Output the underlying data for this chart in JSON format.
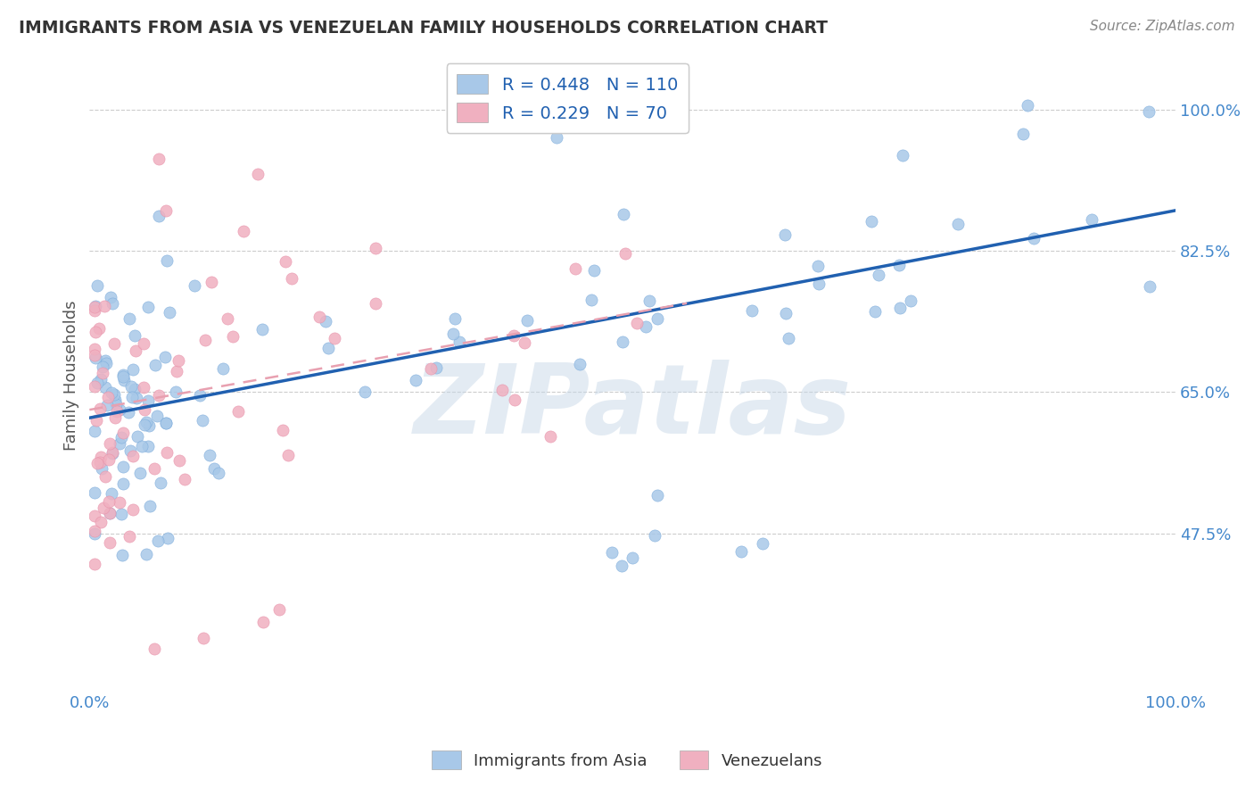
{
  "title": "IMMIGRANTS FROM ASIA VS VENEZUELAN FAMILY HOUSEHOLDS CORRELATION CHART",
  "source_text": "Source: ZipAtlas.com",
  "ylabel": "Family Households",
  "watermark": "ZIPatlas",
  "legend_labels": [
    "Immigrants from Asia",
    "Venezuelans"
  ],
  "legend_r": [
    0.448,
    0.229
  ],
  "legend_n": [
    110,
    70
  ],
  "blue_color": "#a8c8e8",
  "pink_color": "#f0b0c0",
  "blue_edge": "#7aabdb",
  "pink_edge": "#e890a8",
  "trend_blue": "#2060b0",
  "trend_pink": "#e8a0b0",
  "axis_label_color": "#4488cc",
  "title_color": "#333333",
  "source_color": "#888888",
  "legend_text_color": "#2060b0",
  "legend_rn_color": "#2060b0",
  "ytick_labels": [
    "47.5%",
    "65.0%",
    "82.5%",
    "100.0%"
  ],
  "ytick_values": [
    0.475,
    0.65,
    0.825,
    1.0
  ],
  "xtick_labels": [
    "0.0%",
    "100.0%"
  ],
  "xlim": [
    0.0,
    1.0
  ],
  "ylim": [
    0.28,
    1.06
  ],
  "blue_trend_x0": 0.0,
  "blue_trend_y0": 0.618,
  "blue_trend_x1": 1.0,
  "blue_trend_y1": 0.875,
  "pink_trend_x0": 0.0,
  "pink_trend_y0": 0.628,
  "pink_trend_x1": 0.55,
  "pink_trend_y1": 0.76,
  "background_color": "#ffffff",
  "grid_color": "#cccccc"
}
